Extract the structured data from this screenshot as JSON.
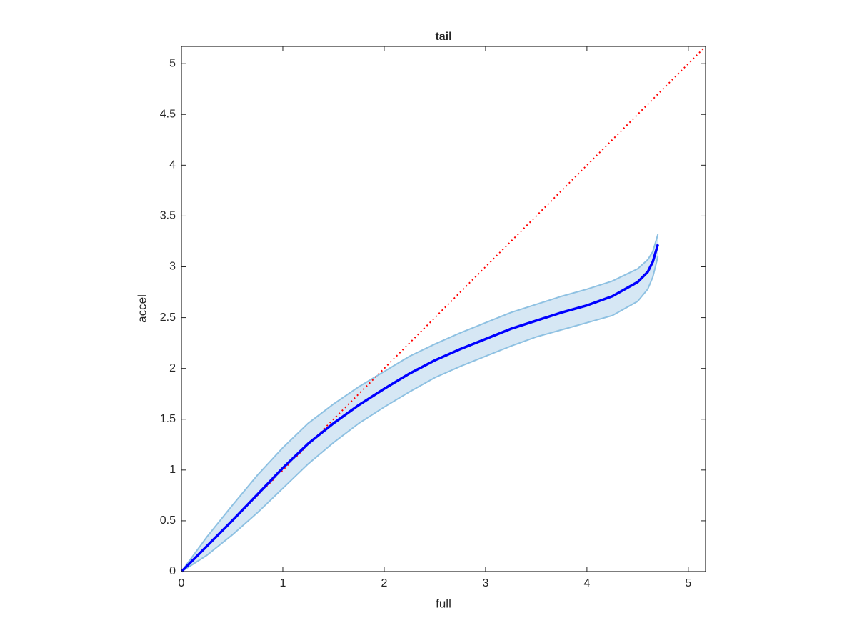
{
  "chart_data": {
    "type": "line",
    "title": "tail",
    "x_label": "full",
    "y_label": "accel",
    "x": [
      0,
      0.25,
      0.5,
      0.75,
      1,
      1.25,
      1.5,
      1.75,
      2,
      2.25,
      2.5,
      2.75,
      3,
      3.25,
      3.5,
      3.75,
      4,
      4.25,
      4.5,
      4.6,
      4.65,
      4.7
    ],
    "series": [
      {
        "color": "#0000ff",
        "values": [
          0,
          0.25,
          0.5,
          0.76,
          1.02,
          1.26,
          1.46,
          1.64,
          1.8,
          1.95,
          2.08,
          2.19,
          2.29,
          2.39,
          2.47,
          2.55,
          2.62,
          2.71,
          2.85,
          2.95,
          3.05,
          3.22
        ],
        "upper": [
          0,
          0.34,
          0.65,
          0.95,
          1.22,
          1.46,
          1.65,
          1.82,
          1.97,
          2.12,
          2.24,
          2.35,
          2.45,
          2.55,
          2.63,
          2.71,
          2.78,
          2.86,
          2.98,
          3.07,
          3.15,
          3.32
        ],
        "lower": [
          0,
          0.16,
          0.36,
          0.58,
          0.82,
          1.06,
          1.27,
          1.46,
          1.62,
          1.77,
          1.91,
          2.02,
          2.12,
          2.22,
          2.31,
          2.38,
          2.45,
          2.52,
          2.66,
          2.78,
          2.9,
          3.1
        ],
        "band_color": "#d6e7f4",
        "band_edge_color": "#8ec1e2"
      }
    ],
    "reference_line": {
      "slope": 1,
      "intercept": 0,
      "color": "#ff0000"
    },
    "xlim": [
      0,
      5.17
    ],
    "ylim": [
      0,
      5.17
    ],
    "xticks": [
      0,
      1,
      2,
      3,
      4,
      5
    ],
    "yticks": [
      0,
      0.5,
      1,
      1.5,
      2,
      2.5,
      3,
      3.5,
      4,
      4.5,
      5
    ]
  }
}
